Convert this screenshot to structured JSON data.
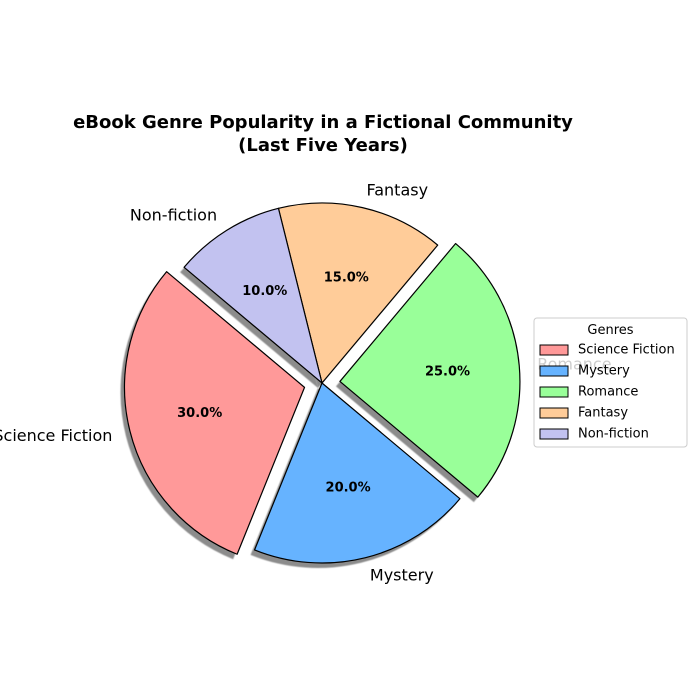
{
  "chart_data": {
    "type": "pie",
    "title": "eBook Genre Popularity in a Fictional Community\n(Last Five Years)",
    "categories": [
      "Science Fiction",
      "Mystery",
      "Romance",
      "Fantasy",
      "Non-fiction"
    ],
    "values": [
      30.0,
      20.0,
      25.0,
      15.0,
      10.0
    ],
    "percent_labels": [
      "30.0%",
      "20.0%",
      "25.0%",
      "15.0%",
      "10.0%"
    ],
    "colors": [
      "#ff9999",
      "#66b3ff",
      "#99ff99",
      "#ffcc99",
      "#c2c2f0"
    ],
    "explode": [
      0.1,
      0.0,
      0.1,
      0.0,
      0.0
    ],
    "start_angle_deg": 140,
    "direction": "counterclockwise",
    "shadow": true,
    "legend": {
      "title": "Genres",
      "placement": "center-right",
      "entries": [
        "Science Fiction",
        "Mystery",
        "Romance",
        "Fantasy",
        "Non-fiction"
      ]
    }
  }
}
